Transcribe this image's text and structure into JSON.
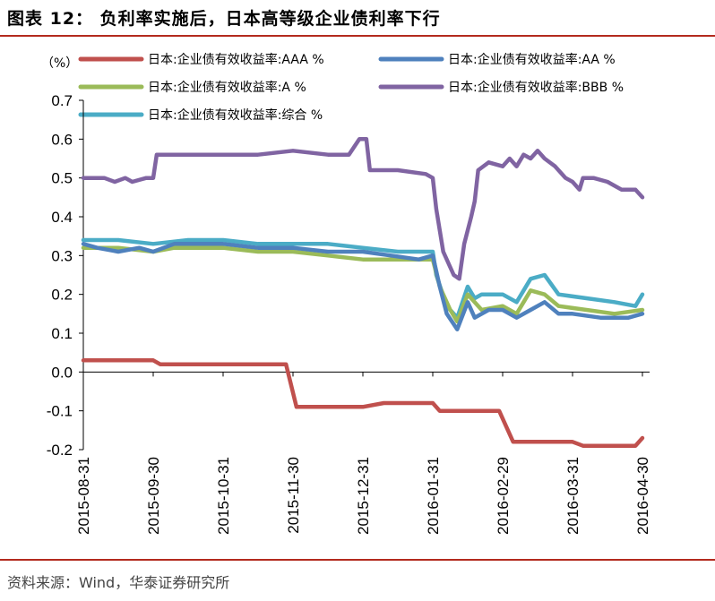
{
  "figure": {
    "title": "图表 12：  负利率实施后，日本高等级企业债利率下行",
    "source": "资料来源：Wind，华泰证券研究所"
  },
  "chart_data": {
    "type": "line",
    "unit_label": "（%）",
    "x": [
      "2015-08-31",
      "2015-09-30",
      "2015-10-31",
      "2015-11-30",
      "2015-12-31",
      "2016-01-31",
      "2016-02-29",
      "2016-03-31",
      "2016-04-30"
    ],
    "ylim": [
      -0.2,
      0.7
    ],
    "yticks": [
      "0.7",
      "0.6",
      "0.5",
      "0.4",
      "0.3",
      "0.2",
      "0.1",
      "0.0",
      "-0.1",
      "-0.2"
    ],
    "grid": false,
    "legend_position": "top",
    "series": [
      {
        "name": "日本:企业债有效收益率:AAA %",
        "color": "#c0504d",
        "points": [
          [
            0,
            0.03
          ],
          [
            1.0,
            0.03
          ],
          [
            1.1,
            0.02
          ],
          [
            2.0,
            0.02
          ],
          [
            2.9,
            0.02
          ],
          [
            3.05,
            -0.09
          ],
          [
            4.0,
            -0.09
          ],
          [
            4.3,
            -0.08
          ],
          [
            5.0,
            -0.08
          ],
          [
            5.1,
            -0.1
          ],
          [
            5.95,
            -0.1
          ],
          [
            6.15,
            -0.18
          ],
          [
            7.0,
            -0.18
          ],
          [
            7.15,
            -0.19
          ],
          [
            7.9,
            -0.19
          ],
          [
            8.0,
            -0.17
          ]
        ]
      },
      {
        "name": "日本:企业债有效收益率:AA %",
        "color": "#4f81bd",
        "points": [
          [
            0,
            0.33
          ],
          [
            0.2,
            0.32
          ],
          [
            0.5,
            0.31
          ],
          [
            0.8,
            0.32
          ],
          [
            1.0,
            0.31
          ],
          [
            1.3,
            0.33
          ],
          [
            2.0,
            0.33
          ],
          [
            2.5,
            0.32
          ],
          [
            3.0,
            0.32
          ],
          [
            3.5,
            0.31
          ],
          [
            4.0,
            0.31
          ],
          [
            4.4,
            0.3
          ],
          [
            4.8,
            0.29
          ],
          [
            5.0,
            0.3
          ],
          [
            5.1,
            0.22
          ],
          [
            5.2,
            0.15
          ],
          [
            5.35,
            0.11
          ],
          [
            5.5,
            0.18
          ],
          [
            5.6,
            0.14
          ],
          [
            5.8,
            0.16
          ],
          [
            6.0,
            0.16
          ],
          [
            6.2,
            0.14
          ],
          [
            6.4,
            0.16
          ],
          [
            6.6,
            0.18
          ],
          [
            6.8,
            0.15
          ],
          [
            7.0,
            0.15
          ],
          [
            7.4,
            0.14
          ],
          [
            7.8,
            0.14
          ],
          [
            8.0,
            0.15
          ]
        ]
      },
      {
        "name": "日本:企业债有效收益率:A %",
        "color": "#9bbb59",
        "points": [
          [
            0,
            0.32
          ],
          [
            0.5,
            0.32
          ],
          [
            1.0,
            0.31
          ],
          [
            1.3,
            0.32
          ],
          [
            2.0,
            0.32
          ],
          [
            2.5,
            0.31
          ],
          [
            3.0,
            0.31
          ],
          [
            3.5,
            0.3
          ],
          [
            4.0,
            0.29
          ],
          [
            4.4,
            0.29
          ],
          [
            4.8,
            0.29
          ],
          [
            5.0,
            0.29
          ],
          [
            5.1,
            0.22
          ],
          [
            5.25,
            0.16
          ],
          [
            5.35,
            0.13
          ],
          [
            5.5,
            0.2
          ],
          [
            5.7,
            0.16
          ],
          [
            6.0,
            0.17
          ],
          [
            6.2,
            0.15
          ],
          [
            6.4,
            0.21
          ],
          [
            6.6,
            0.2
          ],
          [
            6.8,
            0.17
          ],
          [
            7.2,
            0.16
          ],
          [
            7.6,
            0.15
          ],
          [
            8.0,
            0.16
          ]
        ]
      },
      {
        "name": "日本:企业债有效收益率:BBB %",
        "color": "#8064a2",
        "points": [
          [
            0,
            0.5
          ],
          [
            0.3,
            0.5
          ],
          [
            0.45,
            0.49
          ],
          [
            0.6,
            0.5
          ],
          [
            0.7,
            0.49
          ],
          [
            0.9,
            0.5
          ],
          [
            1.0,
            0.5
          ],
          [
            1.05,
            0.56
          ],
          [
            1.5,
            0.56
          ],
          [
            2.0,
            0.56
          ],
          [
            2.5,
            0.56
          ],
          [
            3.0,
            0.57
          ],
          [
            3.5,
            0.56
          ],
          [
            3.8,
            0.56
          ],
          [
            3.95,
            0.6
          ],
          [
            4.05,
            0.6
          ],
          [
            4.1,
            0.52
          ],
          [
            4.5,
            0.52
          ],
          [
            4.9,
            0.51
          ],
          [
            5.0,
            0.5
          ],
          [
            5.05,
            0.42
          ],
          [
            5.15,
            0.31
          ],
          [
            5.3,
            0.25
          ],
          [
            5.38,
            0.24
          ],
          [
            5.45,
            0.33
          ],
          [
            5.55,
            0.4
          ],
          [
            5.6,
            0.44
          ],
          [
            5.65,
            0.52
          ],
          [
            5.8,
            0.54
          ],
          [
            6.0,
            0.53
          ],
          [
            6.1,
            0.55
          ],
          [
            6.2,
            0.53
          ],
          [
            6.3,
            0.56
          ],
          [
            6.4,
            0.55
          ],
          [
            6.5,
            0.57
          ],
          [
            6.6,
            0.55
          ],
          [
            6.75,
            0.53
          ],
          [
            6.9,
            0.5
          ],
          [
            7.0,
            0.49
          ],
          [
            7.1,
            0.47
          ],
          [
            7.15,
            0.5
          ],
          [
            7.3,
            0.5
          ],
          [
            7.5,
            0.49
          ],
          [
            7.7,
            0.47
          ],
          [
            7.9,
            0.47
          ],
          [
            8.0,
            0.45
          ]
        ]
      },
      {
        "name": "日本:企业债有效收益率:综合 %",
        "color": "#4bacc6",
        "points": [
          [
            0,
            0.34
          ],
          [
            0.5,
            0.34
          ],
          [
            1.0,
            0.33
          ],
          [
            1.5,
            0.34
          ],
          [
            2.0,
            0.34
          ],
          [
            2.5,
            0.33
          ],
          [
            3.0,
            0.33
          ],
          [
            3.5,
            0.33
          ],
          [
            4.0,
            0.32
          ],
          [
            4.5,
            0.31
          ],
          [
            5.0,
            0.31
          ],
          [
            5.05,
            0.25
          ],
          [
            5.2,
            0.17
          ],
          [
            5.35,
            0.14
          ],
          [
            5.5,
            0.22
          ],
          [
            5.6,
            0.19
          ],
          [
            5.7,
            0.2
          ],
          [
            6.0,
            0.2
          ],
          [
            6.2,
            0.18
          ],
          [
            6.4,
            0.24
          ],
          [
            6.6,
            0.25
          ],
          [
            6.8,
            0.2
          ],
          [
            7.2,
            0.19
          ],
          [
            7.6,
            0.18
          ],
          [
            7.9,
            0.17
          ],
          [
            8.0,
            0.2
          ]
        ]
      }
    ]
  }
}
